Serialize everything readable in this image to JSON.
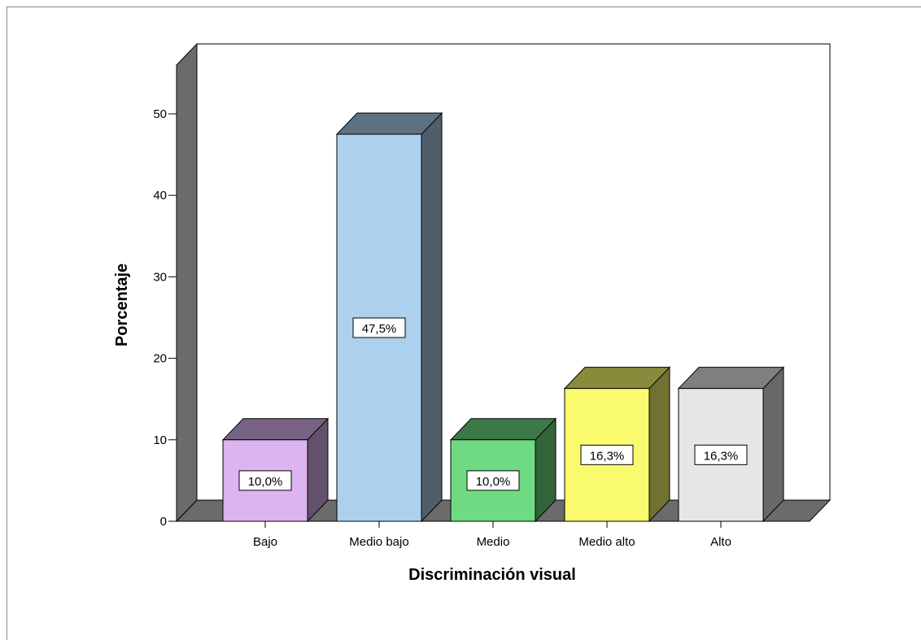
{
  "chart_data": {
    "type": "bar",
    "three_d": true,
    "categories": [
      "Bajo",
      "Medio bajo",
      "Medio",
      "Medio alto",
      "Alto"
    ],
    "values": [
      10.0,
      47.5,
      10.0,
      16.3,
      16.3
    ],
    "data_labels": [
      "10,0%",
      "47,5%",
      "10,0%",
      "16,3%",
      "16,3%"
    ],
    "colors": [
      "#dcb4f0",
      "#add0ee",
      "#6edb82",
      "#fafa6e",
      "#e6e6e6"
    ],
    "xlabel": "Discriminación visual",
    "ylabel": "Porcentaje",
    "ylim": [
      0,
      50
    ],
    "yticks": [
      "0",
      "10",
      "20",
      "30",
      "40",
      "50"
    ],
    "grid": false,
    "legend": "none"
  }
}
